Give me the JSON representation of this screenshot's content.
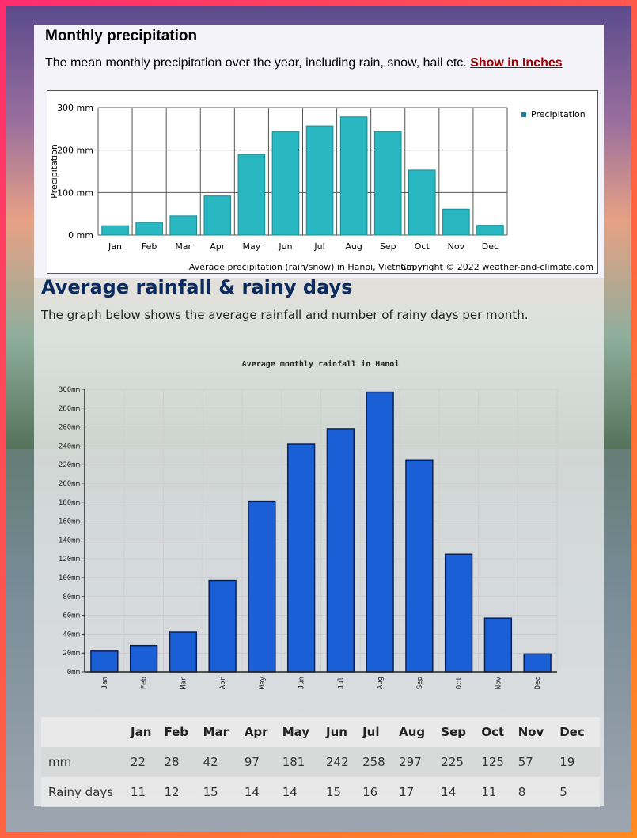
{
  "section1": {
    "title": "Monthly precipitation",
    "description": "The mean monthly precipitation over the year, including rain, snow, hail etc.",
    "link_label": "Show in Inches"
  },
  "section2": {
    "title": "Average rainfall & rainy days",
    "description": "The graph below shows the average rainfall and number of rainy days per month."
  },
  "table": {
    "headers": [
      "",
      "Jan",
      "Feb",
      "Mar",
      "Apr",
      "May",
      "Jun",
      "Jul",
      "Aug",
      "Sep",
      "Oct",
      "Nov",
      "Dec"
    ],
    "rows": [
      [
        "mm",
        "22",
        "28",
        "42",
        "97",
        "181",
        "242",
        "258",
        "297",
        "225",
        "125",
        "57",
        "19"
      ],
      [
        "Rainy days",
        "11",
        "12",
        "15",
        "14",
        "14",
        "15",
        "16",
        "17",
        "14",
        "11",
        "8",
        "5"
      ]
    ]
  },
  "chart_data": [
    {
      "type": "bar",
      "categories": [
        "Jan",
        "Feb",
        "Mar",
        "Apr",
        "May",
        "Jun",
        "Jul",
        "Aug",
        "Sep",
        "Oct",
        "Nov",
        "Dec"
      ],
      "series": [
        {
          "name": "Precipitation",
          "values": [
            22,
            30,
            45,
            92,
            190,
            243,
            257,
            278,
            243,
            153,
            61,
            23
          ]
        }
      ],
      "title": "",
      "caption": "Average precipitation (rain/snow) in Hanoi, Vietnam",
      "copyright": "Copyright © 2022  weather-and-climate.com",
      "xlabel": "",
      "ylabel": "Precipitation",
      "ylim": [
        0,
        300
      ],
      "yticks": [
        "0 mm",
        "100 mm",
        "200 mm",
        "300 mm"
      ],
      "grid": true,
      "legend": "top-right",
      "color": "#29b8c2"
    },
    {
      "type": "bar",
      "categories": [
        "Jan",
        "Feb",
        "Mar",
        "Apr",
        "May",
        "Jun",
        "Jul",
        "Aug",
        "Sep",
        "Oct",
        "Nov",
        "Dec"
      ],
      "series": [
        {
          "values": [
            22,
            28,
            42,
            97,
            181,
            242,
            258,
            297,
            225,
            125,
            57,
            19
          ]
        }
      ],
      "title": "Average monthly rainfall in Hanoi",
      "xlabel": "",
      "ylabel": "",
      "ylim": [
        0,
        300
      ],
      "yticks": [
        "0mm",
        "20mm",
        "40mm",
        "60mm",
        "80mm",
        "100mm",
        "120mm",
        "140mm",
        "160mm",
        "180mm",
        "200mm",
        "220mm",
        "240mm",
        "260mm",
        "280mm",
        "300mm"
      ],
      "grid": true,
      "color": "#1a5fd6"
    }
  ]
}
